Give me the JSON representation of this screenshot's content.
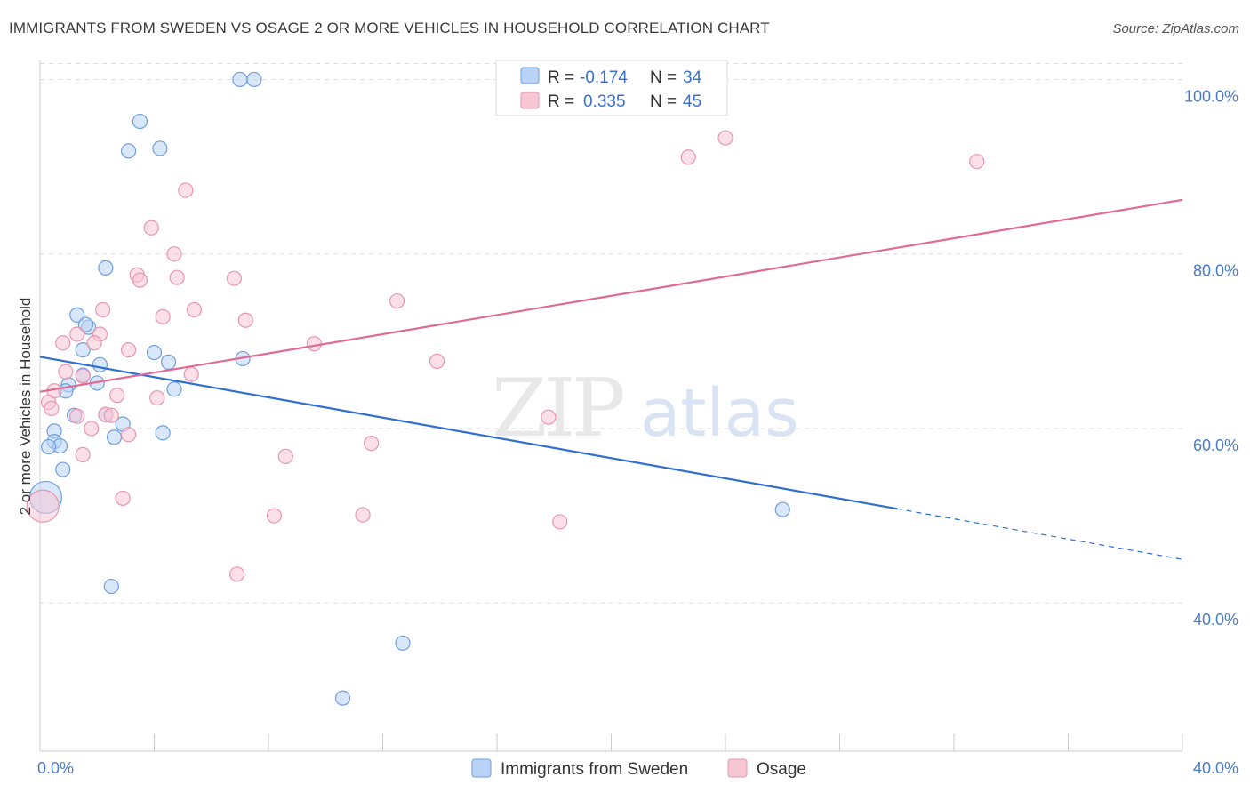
{
  "title": "IMMIGRANTS FROM SWEDEN VS OSAGE 2 OR MORE VEHICLES IN HOUSEHOLD CORRELATION CHART",
  "source": "Source: ZipAtlas.com",
  "watermark": {
    "zip": "ZIP",
    "atlas": "atlas"
  },
  "colors": {
    "blue_fill": "#b8d3f5",
    "blue_stroke": "#6e9fe0",
    "blue_line": "#2f6fcf",
    "pink_fill": "#f7c6d5",
    "pink_stroke": "#e996b0",
    "pink_line": "#e06a93",
    "grid": "#dddddd",
    "tick_label": "#4a7ccc"
  },
  "legend": {
    "rows": [
      {
        "r_label": "R =",
        "r_value": "-0.174",
        "n_label": "N =",
        "n_value": "34"
      },
      {
        "r_label": "R =",
        "r_value": "0.335",
        "n_label": "N =",
        "n_value": "45"
      }
    ]
  },
  "bottom_legend": [
    "Immigrants from Sweden",
    "Osage"
  ],
  "chart_data": {
    "type": "scatter",
    "xlabel": "",
    "ylabel": "2 or more Vehicles in Household",
    "xlim": [
      0,
      40
    ],
    "ylim": [
      23,
      103
    ],
    "x_tick_labels": [
      "0.0%",
      "40.0%"
    ],
    "y_ticks": [
      40,
      60,
      80,
      100
    ],
    "y_tick_labels": [
      "40.0%",
      "60.0%",
      "80.0%",
      "100.0%"
    ],
    "grid": true,
    "legend_position": "top-center",
    "series": [
      {
        "name": "Immigrants from Sweden",
        "points": [
          [
            7.0,
            100.0
          ],
          [
            7.5,
            100.0
          ],
          [
            3.5,
            95.2
          ],
          [
            3.1,
            91.8
          ],
          [
            4.2,
            92.1
          ],
          [
            2.3,
            78.4
          ],
          [
            1.3,
            73.0
          ],
          [
            1.7,
            71.6
          ],
          [
            1.6,
            71.9
          ],
          [
            1.5,
            69.0
          ],
          [
            2.1,
            67.3
          ],
          [
            4.5,
            67.6
          ],
          [
            4.0,
            68.7
          ],
          [
            1.5,
            66.1
          ],
          [
            2.0,
            65.2
          ],
          [
            1.0,
            65.0
          ],
          [
            0.9,
            64.3
          ],
          [
            4.7,
            64.5
          ],
          [
            7.1,
            68.0
          ],
          [
            1.2,
            61.5
          ],
          [
            2.3,
            61.6
          ],
          [
            2.9,
            60.5
          ],
          [
            0.5,
            59.7
          ],
          [
            4.3,
            59.5
          ],
          [
            2.6,
            59.0
          ],
          [
            0.5,
            58.5
          ],
          [
            0.7,
            58.0
          ],
          [
            0.3,
            57.9
          ],
          [
            0.8,
            55.3
          ],
          [
            0.2,
            52.1
          ],
          [
            26.0,
            50.7
          ],
          [
            2.5,
            41.9
          ],
          [
            12.7,
            35.4
          ],
          [
            10.6,
            29.1
          ]
        ],
        "trend": {
          "x": [
            0,
            30,
            40
          ],
          "y": [
            68.2,
            50.8,
            45.0
          ],
          "solid_until": 30
        }
      },
      {
        "name": "Osage",
        "points": [
          [
            24.0,
            93.3
          ],
          [
            22.7,
            91.1
          ],
          [
            32.8,
            90.6
          ],
          [
            5.1,
            87.3
          ],
          [
            3.9,
            83.0
          ],
          [
            4.7,
            80.0
          ],
          [
            3.4,
            77.6
          ],
          [
            3.5,
            77.0
          ],
          [
            4.8,
            77.3
          ],
          [
            6.8,
            77.2
          ],
          [
            12.5,
            74.6
          ],
          [
            2.2,
            73.6
          ],
          [
            5.4,
            73.6
          ],
          [
            4.3,
            72.8
          ],
          [
            7.2,
            72.4
          ],
          [
            2.1,
            70.8
          ],
          [
            1.3,
            70.8
          ],
          [
            0.8,
            69.8
          ],
          [
            3.1,
            69.0
          ],
          [
            9.6,
            69.7
          ],
          [
            13.9,
            67.7
          ],
          [
            1.9,
            69.8
          ],
          [
            0.9,
            66.5
          ],
          [
            5.3,
            66.2
          ],
          [
            1.5,
            66.0
          ],
          [
            0.5,
            64.3
          ],
          [
            2.7,
            63.8
          ],
          [
            4.1,
            63.5
          ],
          [
            0.3,
            63.0
          ],
          [
            0.4,
            62.3
          ],
          [
            1.3,
            61.4
          ],
          [
            2.3,
            61.6
          ],
          [
            2.5,
            61.5
          ],
          [
            17.8,
            61.3
          ],
          [
            1.8,
            60.0
          ],
          [
            3.1,
            59.3
          ],
          [
            11.6,
            58.3
          ],
          [
            1.5,
            57.0
          ],
          [
            8.6,
            56.8
          ],
          [
            2.9,
            52.0
          ],
          [
            0.1,
            51.1
          ],
          [
            8.2,
            50.0
          ],
          [
            11.3,
            50.1
          ],
          [
            18.2,
            49.3
          ],
          [
            6.9,
            43.3
          ]
        ],
        "trend": {
          "x": [
            0,
            40
          ],
          "y": [
            64.2,
            86.2
          ],
          "solid_until": 40
        }
      }
    ]
  }
}
